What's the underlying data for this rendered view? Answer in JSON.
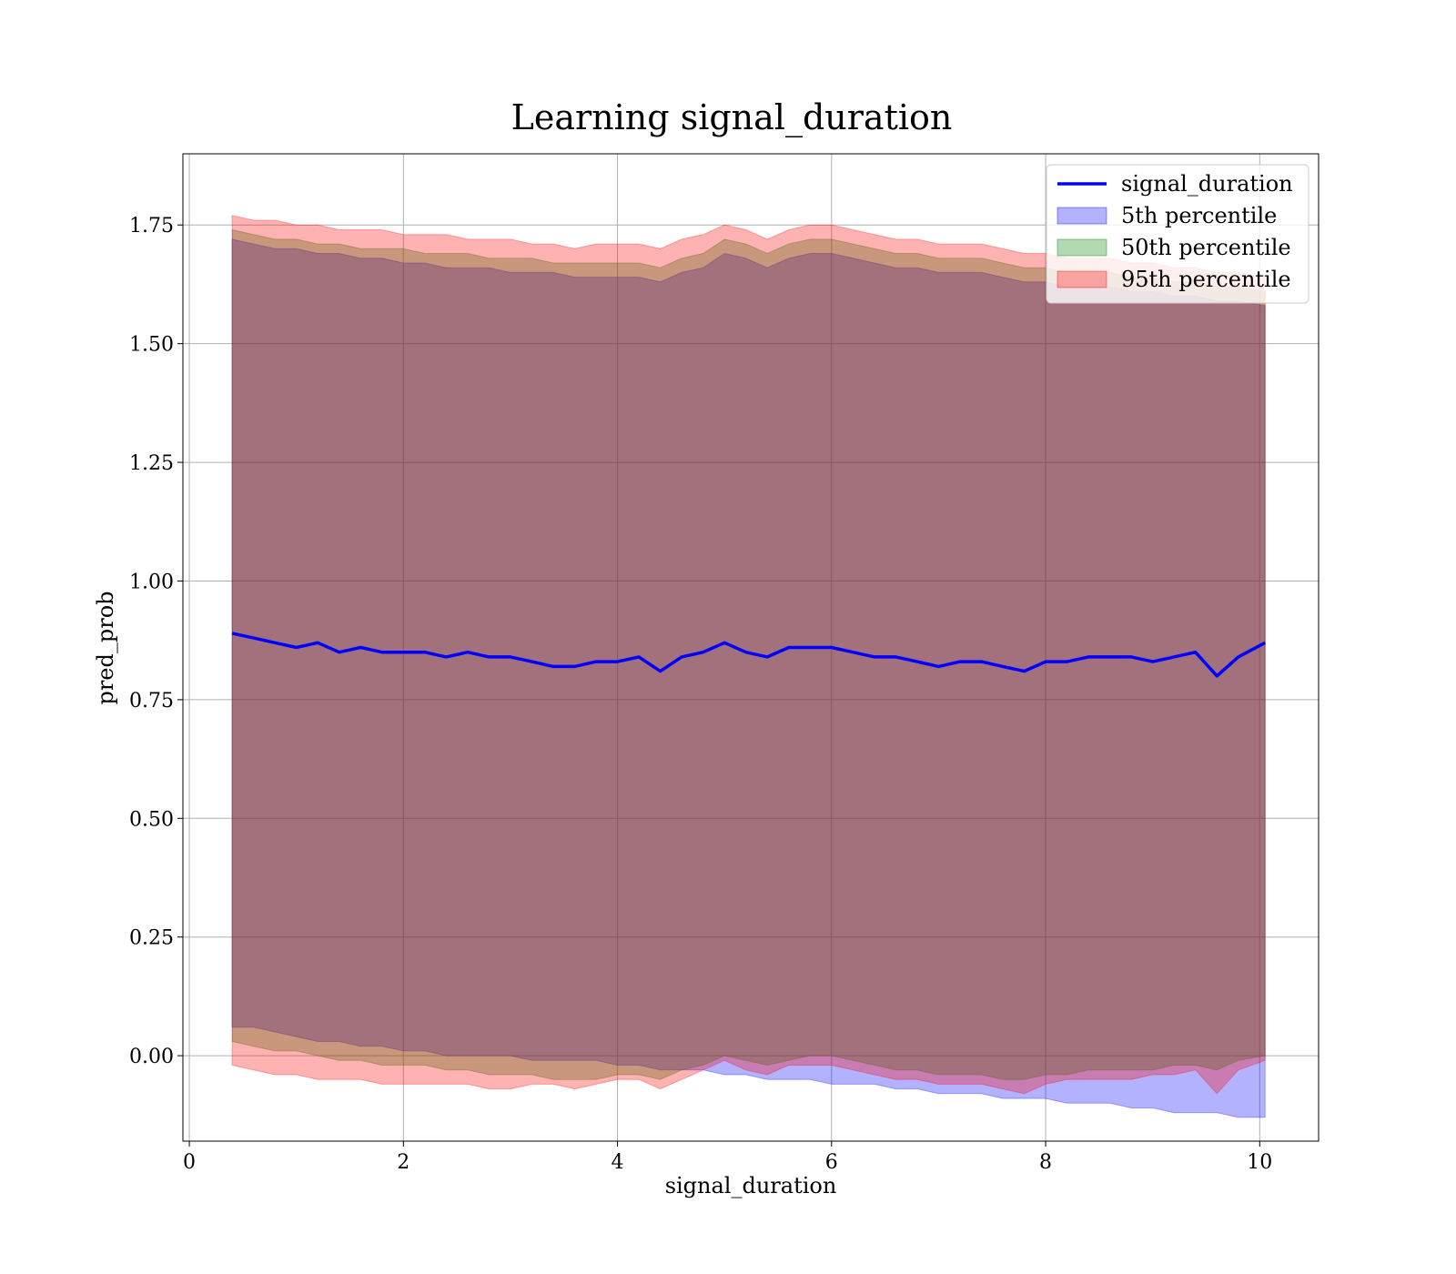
{
  "chart_data": {
    "type": "area",
    "title": "Learning signal_duration",
    "xlabel": "signal_duration",
    "ylabel": "pred_prob",
    "xlim": [
      -0.06,
      10.55
    ],
    "ylim": [
      -0.18,
      1.9
    ],
    "x_ticks": [
      0,
      2,
      4,
      6,
      8,
      10
    ],
    "x_tick_labels": [
      "0",
      "2",
      "4",
      "6",
      "8",
      "10"
    ],
    "y_ticks": [
      0.0,
      0.25,
      0.5,
      0.75,
      1.0,
      1.25,
      1.5,
      1.75
    ],
    "y_tick_labels": [
      "0.00",
      "0.25",
      "0.50",
      "0.75",
      "1.00",
      "1.25",
      "1.50",
      "1.75"
    ],
    "grid": true,
    "legend_position": "top-right",
    "x": [
      0.4,
      0.6,
      0.8,
      1.0,
      1.2,
      1.4,
      1.6,
      1.8,
      2.0,
      2.2,
      2.4,
      2.6,
      2.8,
      3.0,
      3.2,
      3.4,
      3.6,
      3.8,
      4.0,
      4.2,
      4.4,
      4.6,
      4.8,
      5.0,
      5.2,
      5.4,
      5.6,
      5.8,
      6.0,
      6.2,
      6.4,
      6.6,
      6.8,
      7.0,
      7.2,
      7.4,
      7.6,
      7.8,
      8.0,
      8.2,
      8.4,
      8.6,
      8.8,
      9.0,
      9.2,
      9.4,
      9.6,
      9.8,
      10.05
    ],
    "series": [
      {
        "name": "signal_duration",
        "kind": "line",
        "color": "#0000ff",
        "values": [
          0.89,
          0.88,
          0.87,
          0.86,
          0.87,
          0.85,
          0.86,
          0.85,
          0.85,
          0.85,
          0.84,
          0.85,
          0.84,
          0.84,
          0.83,
          0.82,
          0.82,
          0.83,
          0.83,
          0.84,
          0.81,
          0.84,
          0.85,
          0.87,
          0.85,
          0.84,
          0.86,
          0.86,
          0.86,
          0.85,
          0.84,
          0.84,
          0.83,
          0.82,
          0.83,
          0.83,
          0.82,
          0.81,
          0.83,
          0.83,
          0.84,
          0.84,
          0.84,
          0.83,
          0.84,
          0.85,
          0.8,
          0.84,
          0.87
        ]
      },
      {
        "name": "5th percentile",
        "kind": "band",
        "color": "#0000ff",
        "lower": [
          0.06,
          0.06,
          0.05,
          0.04,
          0.03,
          0.03,
          0.02,
          0.02,
          0.01,
          0.01,
          0.0,
          0.0,
          0.0,
          0.0,
          -0.01,
          -0.01,
          -0.01,
          -0.01,
          -0.02,
          -0.02,
          -0.03,
          -0.03,
          -0.03,
          -0.04,
          -0.04,
          -0.05,
          -0.05,
          -0.05,
          -0.06,
          -0.06,
          -0.06,
          -0.07,
          -0.07,
          -0.08,
          -0.08,
          -0.08,
          -0.09,
          -0.09,
          -0.09,
          -0.1,
          -0.1,
          -0.1,
          -0.11,
          -0.11,
          -0.12,
          -0.12,
          -0.12,
          -0.13,
          -0.13
        ],
        "upper": [
          1.72,
          1.71,
          1.7,
          1.7,
          1.69,
          1.69,
          1.68,
          1.68,
          1.67,
          1.67,
          1.66,
          1.66,
          1.66,
          1.65,
          1.65,
          1.65,
          1.64,
          1.64,
          1.64,
          1.64,
          1.63,
          1.65,
          1.66,
          1.69,
          1.68,
          1.66,
          1.68,
          1.69,
          1.69,
          1.68,
          1.67,
          1.66,
          1.66,
          1.65,
          1.65,
          1.65,
          1.64,
          1.63,
          1.63,
          1.62,
          1.62,
          1.62,
          1.61,
          1.61,
          1.6,
          1.6,
          1.59,
          1.59,
          1.58
        ]
      },
      {
        "name": "50th percentile",
        "kind": "band",
        "color": "#008000",
        "lower": [
          0.03,
          0.02,
          0.01,
          0.01,
          0.0,
          -0.01,
          -0.01,
          -0.02,
          -0.02,
          -0.02,
          -0.03,
          -0.03,
          -0.04,
          -0.04,
          -0.04,
          -0.05,
          -0.05,
          -0.05,
          -0.04,
          -0.04,
          -0.05,
          -0.03,
          -0.02,
          0.0,
          -0.01,
          -0.02,
          -0.01,
          0.0,
          0.0,
          -0.01,
          -0.02,
          -0.03,
          -0.03,
          -0.04,
          -0.04,
          -0.04,
          -0.05,
          -0.05,
          -0.04,
          -0.04,
          -0.03,
          -0.03,
          -0.03,
          -0.03,
          -0.02,
          -0.02,
          -0.03,
          -0.01,
          0.0
        ],
        "upper": [
          1.74,
          1.73,
          1.72,
          1.72,
          1.71,
          1.71,
          1.7,
          1.7,
          1.7,
          1.69,
          1.69,
          1.69,
          1.68,
          1.68,
          1.68,
          1.67,
          1.67,
          1.67,
          1.67,
          1.67,
          1.66,
          1.68,
          1.69,
          1.72,
          1.71,
          1.69,
          1.71,
          1.72,
          1.72,
          1.71,
          1.7,
          1.69,
          1.69,
          1.68,
          1.68,
          1.68,
          1.67,
          1.66,
          1.66,
          1.65,
          1.65,
          1.65,
          1.64,
          1.64,
          1.63,
          1.63,
          1.62,
          1.62,
          1.61
        ]
      },
      {
        "name": "95th percentile",
        "kind": "band",
        "color": "#ff0000",
        "lower": [
          -0.02,
          -0.03,
          -0.04,
          -0.04,
          -0.05,
          -0.05,
          -0.05,
          -0.06,
          -0.06,
          -0.06,
          -0.06,
          -0.06,
          -0.07,
          -0.07,
          -0.06,
          -0.06,
          -0.07,
          -0.06,
          -0.05,
          -0.05,
          -0.07,
          -0.05,
          -0.03,
          -0.01,
          -0.03,
          -0.04,
          -0.02,
          -0.02,
          -0.02,
          -0.03,
          -0.04,
          -0.05,
          -0.05,
          -0.06,
          -0.06,
          -0.06,
          -0.07,
          -0.08,
          -0.06,
          -0.05,
          -0.05,
          -0.05,
          -0.05,
          -0.04,
          -0.04,
          -0.03,
          -0.08,
          -0.03,
          -0.01
        ],
        "upper": [
          1.77,
          1.76,
          1.76,
          1.75,
          1.75,
          1.74,
          1.74,
          1.74,
          1.73,
          1.73,
          1.73,
          1.72,
          1.72,
          1.72,
          1.71,
          1.71,
          1.7,
          1.71,
          1.71,
          1.71,
          1.7,
          1.72,
          1.73,
          1.75,
          1.74,
          1.72,
          1.74,
          1.75,
          1.75,
          1.74,
          1.73,
          1.72,
          1.72,
          1.71,
          1.71,
          1.71,
          1.7,
          1.69,
          1.69,
          1.68,
          1.68,
          1.68,
          1.67,
          1.67,
          1.66,
          1.66,
          1.65,
          1.65,
          1.64
        ]
      }
    ],
    "legend": [
      {
        "label": "signal_duration",
        "kind": "line",
        "color": "#0000ff"
      },
      {
        "label": "5th percentile",
        "kind": "patch",
        "color": "#0000ff"
      },
      {
        "label": "50th percentile",
        "kind": "patch",
        "color": "#008000"
      },
      {
        "label": "95th percentile",
        "kind": "patch",
        "color": "#ff0000"
      }
    ]
  }
}
